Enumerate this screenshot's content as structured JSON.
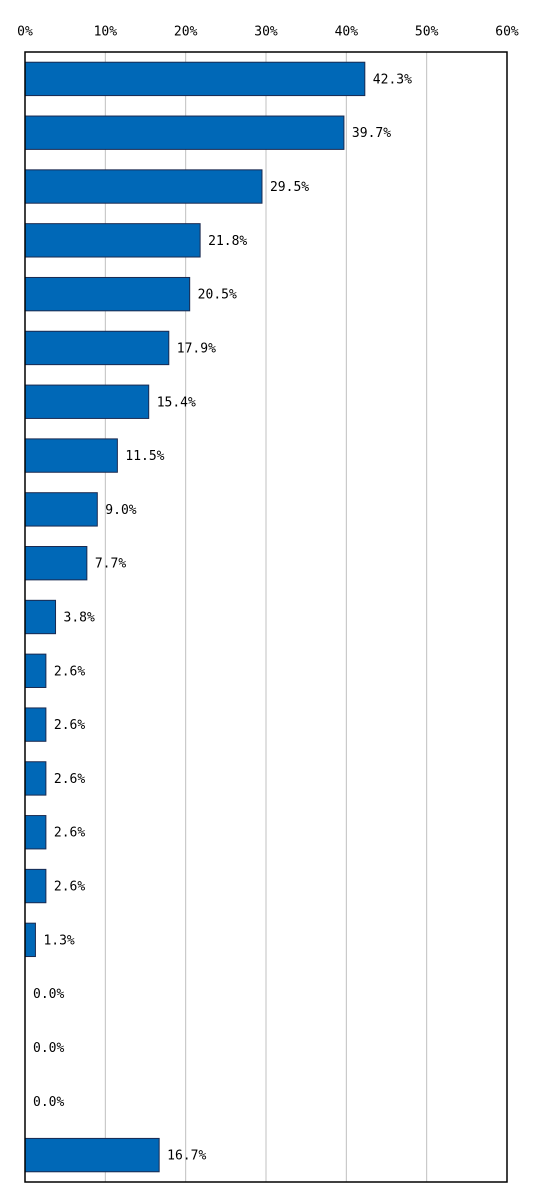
{
  "chart_data": {
    "type": "bar",
    "orientation": "horizontal",
    "values": [
      42.3,
      39.7,
      29.5,
      21.8,
      20.5,
      17.9,
      15.4,
      11.5,
      9.0,
      7.7,
      3.8,
      2.6,
      2.6,
      2.6,
      2.6,
      2.6,
      1.3,
      0.0,
      0.0,
      0.0,
      16.7
    ],
    "value_labels": [
      "42.3%",
      "39.7%",
      "29.5%",
      "21.8%",
      "20.5%",
      "17.9%",
      "15.4%",
      "11.5%",
      "9.0%",
      "7.7%",
      "3.8%",
      "2.6%",
      "2.6%",
      "2.6%",
      "2.6%",
      "2.6%",
      "1.3%",
      "0.0%",
      "0.0%",
      "0.0%",
      "16.7%"
    ],
    "color": "#0068b7",
    "xlim": [
      0,
      60
    ],
    "xticks": [
      {
        "value": 0,
        "label": "0%"
      },
      {
        "value": 10,
        "label": "10%"
      },
      {
        "value": 20,
        "label": "20%"
      },
      {
        "value": 30,
        "label": "30%"
      },
      {
        "value": 40,
        "label": "40%"
      },
      {
        "value": 50,
        "label": "50%"
      },
      {
        "value": 60,
        "label": "60%"
      }
    ],
    "grid": true
  }
}
